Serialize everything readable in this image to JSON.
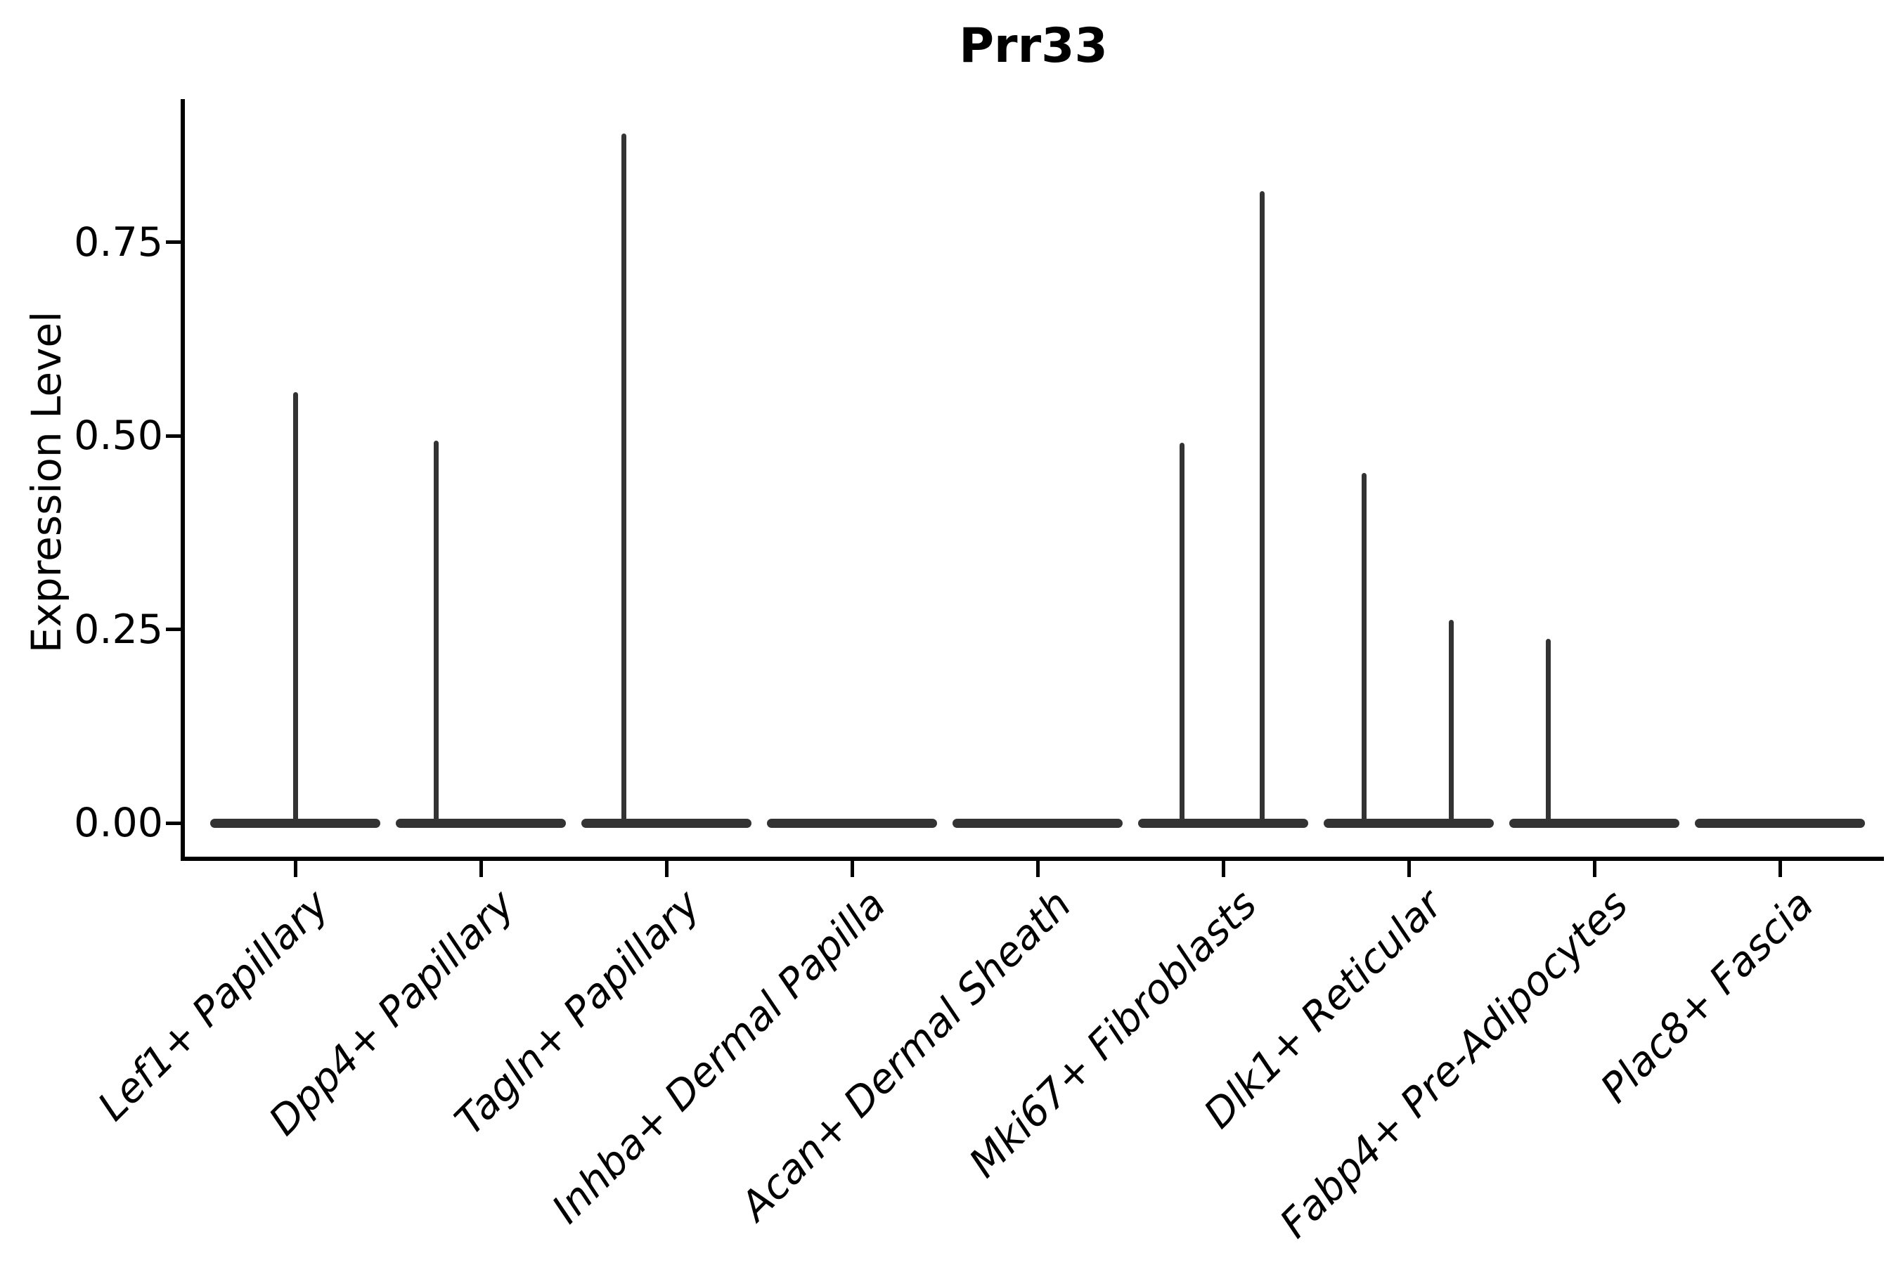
{
  "chart_data": {
    "type": "violin",
    "title": "Prr33",
    "xlabel": "",
    "ylabel": "Expression Level",
    "y_ticks": [
      {
        "value": 0.0,
        "label": "0.00"
      },
      {
        "value": 0.25,
        "label": "0.25"
      },
      {
        "value": 0.5,
        "label": "0.50"
      },
      {
        "value": 0.75,
        "label": "0.75"
      }
    ],
    "ylim": [
      -0.046,
      0.935
    ],
    "grid": false,
    "legend": "none",
    "x_labels_rotation_deg": 45,
    "x_labels_italic": true,
    "categories": [
      "Lef1+ Papillary",
      "Dpp4+ Papillary",
      "Tagln+ Papillary",
      "Inhba+ Dermal Papilla",
      "Acan+ Dermal Sheath",
      "Mki67+ Fibroblasts",
      "Dlk1+ Reticular",
      "Fabp4+ Pre-Adipocytes",
      "Plac8+ Fascia"
    ],
    "violins": [
      {
        "category": "Lef1+ Papillary",
        "baseline_value": 0,
        "spikes": [
          {
            "offset_frac": 0.0,
            "peak_value": 0.556
          }
        ]
      },
      {
        "category": "Dpp4+ Papillary",
        "baseline_value": 0,
        "spikes": [
          {
            "offset_frac": -0.24,
            "peak_value": 0.494
          }
        ]
      },
      {
        "category": "Tagln+ Papillary",
        "baseline_value": 0,
        "spikes": [
          {
            "offset_frac": -0.23,
            "peak_value": 0.89
          }
        ]
      },
      {
        "category": "Inhba+ Dermal Papilla",
        "baseline_value": 0,
        "spikes": []
      },
      {
        "category": "Acan+ Dermal Sheath",
        "baseline_value": 0,
        "spikes": []
      },
      {
        "category": "Mki67+ Fibroblasts",
        "baseline_value": 0,
        "spikes": [
          {
            "offset_frac": -0.22,
            "peak_value": 0.491
          },
          {
            "offset_frac": 0.21,
            "peak_value": 0.816
          }
        ]
      },
      {
        "category": "Dlk1+ Reticular",
        "baseline_value": 0,
        "spikes": [
          {
            "offset_frac": -0.24,
            "peak_value": 0.452
          },
          {
            "offset_frac": 0.23,
            "peak_value": 0.262
          }
        ]
      },
      {
        "category": "Fabp4+ Pre-Adipocytes",
        "baseline_value": 0,
        "spikes": [
          {
            "offset_frac": -0.25,
            "peak_value": 0.238
          }
        ]
      },
      {
        "category": "Plac8+ Fascia",
        "baseline_value": 0,
        "spikes": []
      }
    ],
    "colors": {
      "violin": "#333333",
      "axis": "#000000",
      "text": "#000000",
      "background": "#ffffff"
    }
  }
}
